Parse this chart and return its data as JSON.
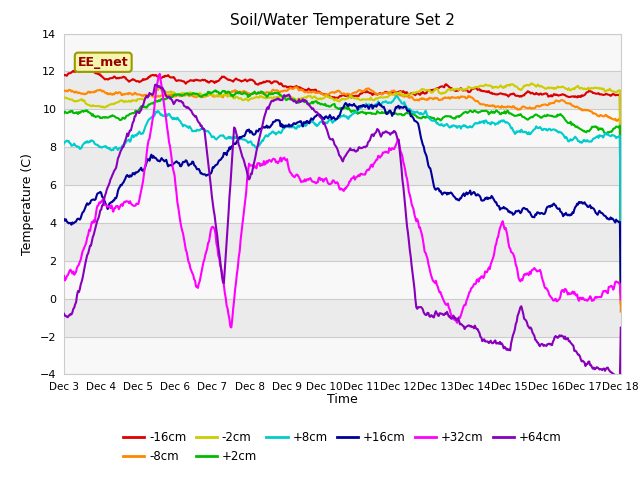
{
  "title": "Soil/Water Temperature Set 2",
  "xlabel": "Time",
  "ylabel": "Temperature (C)",
  "ylim": [
    -4,
    14
  ],
  "yticks": [
    -4,
    -2,
    0,
    2,
    4,
    6,
    8,
    10,
    12,
    14
  ],
  "x_ticks": [
    3,
    4,
    5,
    6,
    7,
    8,
    9,
    10,
    11,
    12,
    13,
    14,
    15,
    16,
    17,
    18
  ],
  "x_tick_labels": [
    "Dec 3",
    "Dec 4",
    "Dec 5",
    "Dec 6",
    "Dec 7",
    "Dec 8",
    "Dec 9",
    "Dec 10",
    "Dec 11",
    "Dec 12",
    "Dec 13",
    "Dec 14",
    "Dec 15",
    "Dec 16",
    "Dec 17",
    "Dec 18"
  ],
  "watermark_text": "EE_met",
  "series": {
    "neg16cm": {
      "label": "-16cm",
      "color": "#dd0000"
    },
    "neg8cm": {
      "label": "-8cm",
      "color": "#ff8800"
    },
    "neg2cm": {
      "label": "-2cm",
      "color": "#cccc00"
    },
    "pos2cm": {
      "label": "+2cm",
      "color": "#00bb00"
    },
    "pos8cm": {
      "label": "+8cm",
      "color": "#00cccc"
    },
    "pos16cm": {
      "label": "+16cm",
      "color": "#000099"
    },
    "pos32cm": {
      "label": "+32cm",
      "color": "#ff00ff"
    },
    "pos64cm": {
      "label": "+64cm",
      "color": "#8800bb"
    }
  },
  "legend_order": [
    "-16cm",
    "-8cm",
    "-2cm",
    "+2cm",
    "+8cm",
    "+16cm",
    "+32cm",
    "+64cm"
  ],
  "grid_color": "#cccccc",
  "band_colors": [
    "#f0f0f0",
    "#e0e0e0"
  ]
}
